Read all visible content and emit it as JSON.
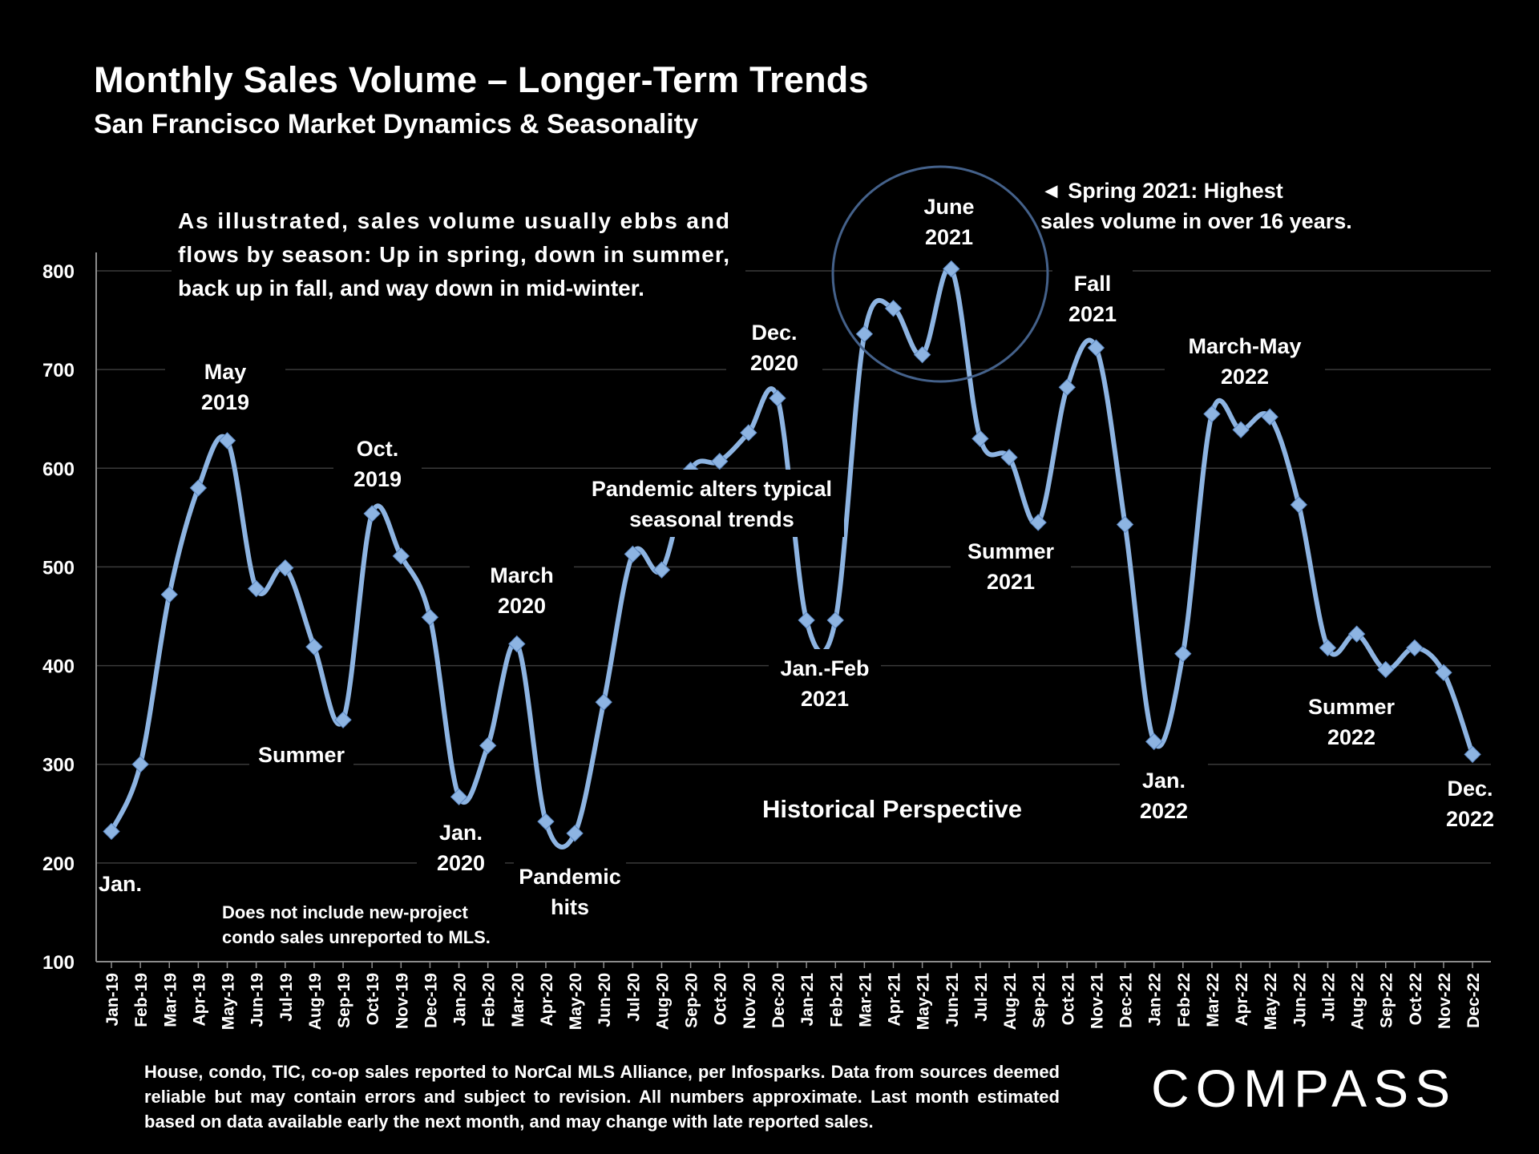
{
  "header": {
    "title": "Monthly Sales Volume – Longer-Term Trends",
    "subtitle": "San Francisco Market Dynamics & Seasonality"
  },
  "chart_data": {
    "type": "line",
    "categories": [
      "Jan-19",
      "Feb-19",
      "Mar-19",
      "Apr-19",
      "May-19",
      "Jun-19",
      "Jul-19",
      "Aug-19",
      "Sep-19",
      "Oct-19",
      "Nov-19",
      "Dec-19",
      "Jan-20",
      "Feb-20",
      "Mar-20",
      "Apr-20",
      "May-20",
      "Jun-20",
      "Jul-20",
      "Aug-20",
      "Sep-20",
      "Oct-20",
      "Nov-20",
      "Dec-20",
      "Jan-21",
      "Feb-21",
      "Mar-21",
      "Apr-21",
      "May-21",
      "Jun-21",
      "Jul-21",
      "Aug-21",
      "Sep-21",
      "Oct-21",
      "Nov-21",
      "Dec-21",
      "Jan-22",
      "Feb-22",
      "Mar-22",
      "Apr-22",
      "May-22",
      "Jun-22",
      "Jul-22",
      "Aug-22",
      "Sep-22",
      "Oct-22",
      "Nov-22",
      "Dec-22"
    ],
    "series": [
      {
        "name": "Monthly Sales Volume",
        "values": [
          232,
          300,
          472,
          580,
          628,
          478,
          499,
          419,
          345,
          554,
          511,
          449,
          267,
          319,
          422,
          242,
          230,
          363,
          513,
          497,
          598,
          607,
          636,
          671,
          446,
          446,
          736,
          762,
          715,
          802,
          630,
          611,
          545,
          682,
          722,
          543,
          323,
          412,
          655,
          639,
          652,
          563,
          418,
          432,
          396,
          418,
          393,
          310
        ]
      }
    ],
    "ylim": [
      100,
      800
    ],
    "yticks": [
      100,
      200,
      300,
      400,
      500,
      600,
      700,
      800
    ],
    "color": "#8db4e2",
    "grid": true,
    "annotations": [
      {
        "id": "jan19",
        "lines": [
          "Jan."
        ]
      },
      {
        "id": "may19",
        "lines": [
          "May",
          "2019"
        ]
      },
      {
        "id": "summer19",
        "lines": [
          "Summer"
        ]
      },
      {
        "id": "oct19",
        "lines": [
          "Oct.",
          "2019"
        ]
      },
      {
        "id": "jan20",
        "lines": [
          "Jan.",
          "2020"
        ]
      },
      {
        "id": "mar20",
        "lines": [
          "March",
          "2020"
        ]
      },
      {
        "id": "pandemic",
        "lines": [
          "Pandemic",
          "hits"
        ]
      },
      {
        "id": "alters",
        "lines": [
          "Pandemic alters typical",
          "seasonal trends"
        ]
      },
      {
        "id": "dec20",
        "lines": [
          "Dec.",
          "2020"
        ]
      },
      {
        "id": "janfeb21",
        "lines": [
          "Jan.-Feb",
          "2021"
        ]
      },
      {
        "id": "jun21",
        "lines": [
          "June",
          "2021"
        ]
      },
      {
        "id": "spring21",
        "lines": [
          "◄  Spring 2021:  Highest",
          "sales volume in over 16 years."
        ]
      },
      {
        "id": "fall21",
        "lines": [
          "Fall",
          "2021"
        ]
      },
      {
        "id": "summer21",
        "lines": [
          "Summer",
          "2021"
        ]
      },
      {
        "id": "marmay22",
        "lines": [
          "March-May",
          "2022"
        ]
      },
      {
        "id": "jan22",
        "lines": [
          "Jan.",
          "2022"
        ]
      },
      {
        "id": "summer22",
        "lines": [
          "Summer",
          "2022"
        ]
      },
      {
        "id": "dec22",
        "lines": [
          "Dec.",
          "2022"
        ]
      },
      {
        "id": "historical",
        "lines": [
          "Historical Perspective"
        ]
      },
      {
        "id": "note",
        "lines": [
          "Does not include new-project",
          "condo sales unreported to MLS."
        ]
      },
      {
        "id": "illustrated",
        "lines": [
          "As illustrated, sales volume usually ebbs and",
          "flows by season: Up in spring, down in summer,",
          "back up in fall, and way down in mid-winter."
        ]
      }
    ]
  },
  "footer": {
    "note": "House, condo, TIC, co-op sales reported to NorCal MLS Alliance, per Infosparks. Data from sources deemed reliable but may contain errors and subject to revision. All numbers approximate. Last month estimated based on data available early the next month, and may change with late reported sales.",
    "logo": "COMPASS"
  }
}
